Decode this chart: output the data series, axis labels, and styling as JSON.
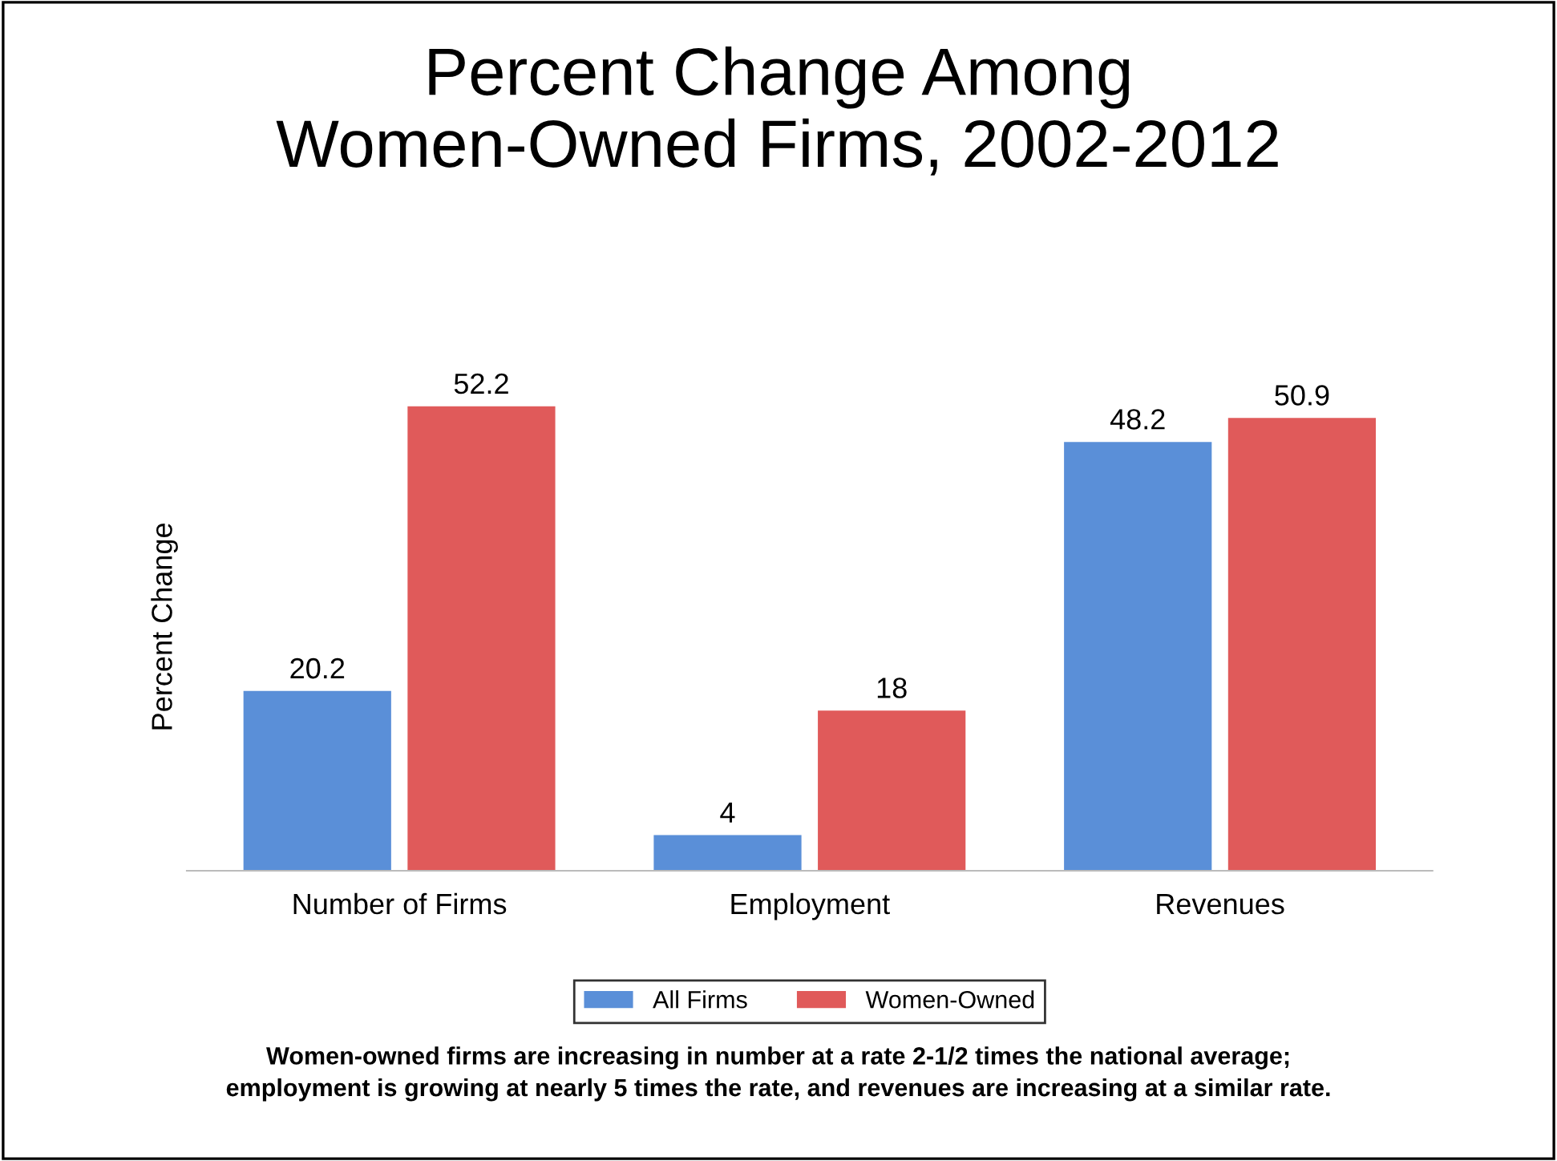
{
  "chart_data": {
    "type": "bar",
    "title": "Percent Change Among\nWomen-Owned Firms, 2002-2012",
    "ylabel": "Percent Change",
    "categories": [
      "Number of Firms",
      "Employment",
      "Revenues"
    ],
    "series": [
      {
        "name": "All Firms",
        "color": "#5a8fd8",
        "values": [
          20.2,
          4,
          48.2
        ]
      },
      {
        "name": "Women-Owned",
        "color": "#e05a5a",
        "values": [
          52.2,
          18,
          50.9
        ]
      }
    ],
    "data_labels": true,
    "legend": "bottom",
    "grid": false,
    "annotations": [
      "Women-owned firms are increasing in number at a rate 2-1/2 times the national average;\nemployment is growing at nearly 5 times the rate, and revenues are increasing at a similar rate."
    ]
  }
}
